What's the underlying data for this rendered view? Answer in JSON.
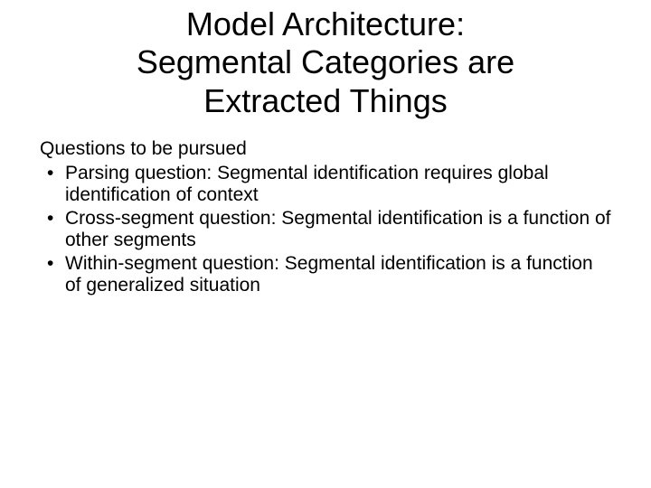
{
  "title_line1": "Model Architecture:",
  "title_line2": "Segmental Categories are",
  "title_line3": "Extracted Things",
  "subheading": "Questions to be pursued",
  "bullets": [
    "Parsing question: Segmental identification requires global identification of context",
    "Cross-segment question: Segmental identification is a function of other segments",
    "Within-segment question: Segmental identification is a function of generalized situation"
  ],
  "colors": {
    "background": "#ffffff",
    "text": "#000000"
  },
  "typography": {
    "title_fontsize": 36,
    "body_fontsize": 21,
    "font_family": "Arial"
  }
}
